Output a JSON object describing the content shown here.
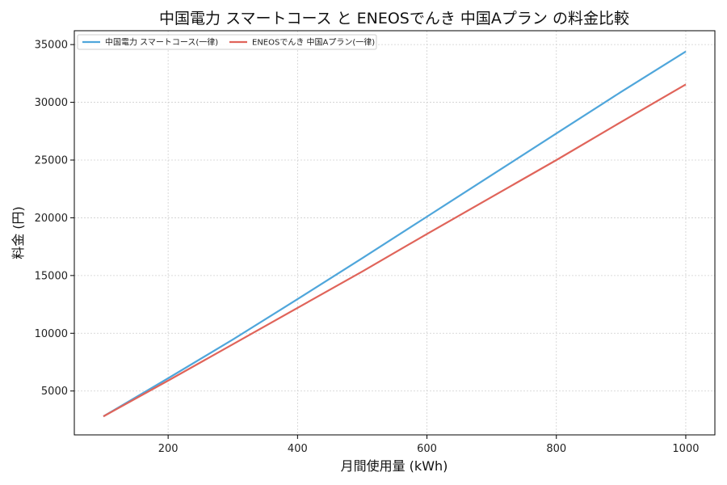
{
  "chart_data": {
    "type": "line",
    "title": "中国電力 スマートコース と ENEOSでんき 中国Aプラン の料金比較",
    "xlabel": "月間使用量 (kWh)",
    "ylabel": "料金 (円)",
    "xlim": [
      55,
      1045
    ],
    "ylim": [
      1200,
      36200
    ],
    "xticks": [
      200,
      400,
      600,
      800,
      1000
    ],
    "yticks": [
      5000,
      10000,
      15000,
      20000,
      25000,
      30000,
      35000
    ],
    "grid": true,
    "legend_position": "top-left",
    "x": [
      100,
      200,
      300,
      400,
      500,
      600,
      700,
      800,
      900,
      1000
    ],
    "series": [
      {
        "name": "中国電力 スマートコース(一律)",
        "color": "#4fa6db",
        "values": [
          2800,
          6100,
          9450,
          12950,
          16500,
          20100,
          23700,
          27300,
          30900,
          34400
        ]
      },
      {
        "name": "ENEOSでんき 中国Aプラン(一律)",
        "color": "#e0645a",
        "values": [
          2800,
          5900,
          9050,
          12200,
          15350,
          18600,
          21800,
          25000,
          28300,
          31550
        ]
      }
    ]
  }
}
